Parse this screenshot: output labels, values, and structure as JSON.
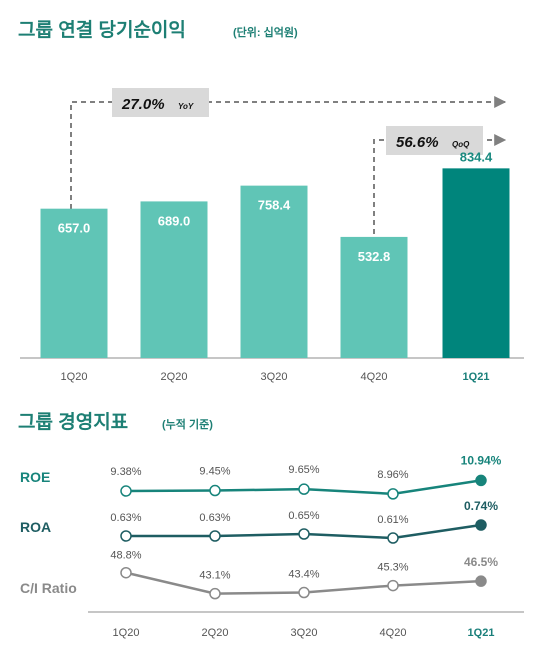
{
  "titles": {
    "net_income_main": "그룹 연결 당기순이익",
    "net_income_unit": "(단위: 십억원)",
    "indicators_main": "그룹 경영지표",
    "indicators_unit": "(누적 기준)"
  },
  "growth": {
    "yoy_value": "27.0%",
    "yoy_suffix": "YoY",
    "qoq_value": "56.6%",
    "qoq_suffix": "QoQ"
  },
  "colors": {
    "bar": "#60c5b6",
    "bar_highlight": "#00857c",
    "title": "#1d7f74",
    "roe": "#17847b",
    "roa": "#1e5d62",
    "ci": "#8a8a8a"
  },
  "chart_data": [
    {
      "type": "bar",
      "title": "그룹 연결 당기순이익",
      "unit": "(단위: 십억원)",
      "categories": [
        "1Q20",
        "2Q20",
        "3Q20",
        "4Q20",
        "1Q21"
      ],
      "values": [
        657.0,
        689.0,
        758.4,
        532.8,
        834.4
      ],
      "value_labels": [
        "657.0",
        "689.0",
        "758.4",
        "532.8",
        "834.4"
      ],
      "highlight_index": 4,
      "ylim": [
        0,
        880
      ],
      "annotations": [
        "27.0% YoY",
        "56.6% QoQ"
      ]
    },
    {
      "type": "line",
      "title": "그룹 경영지표",
      "unit": "(누적 기준)",
      "categories": [
        "1Q20",
        "2Q20",
        "3Q20",
        "4Q20",
        "1Q21"
      ],
      "series": [
        {
          "name": "ROE",
          "values": [
            9.38,
            9.45,
            9.65,
            8.96,
            10.94
          ],
          "labels": [
            "9.38%",
            "9.45%",
            "9.65%",
            "8.96%",
            "10.94%"
          ]
        },
        {
          "name": "ROA",
          "values": [
            0.63,
            0.63,
            0.65,
            0.61,
            0.74
          ],
          "labels": [
            "0.63%",
            "0.63%",
            "0.65%",
            "0.61%",
            "0.74%"
          ]
        },
        {
          "name": "C/I Ratio",
          "values": [
            48.8,
            43.1,
            43.4,
            45.3,
            46.5
          ],
          "labels": [
            "48.8%",
            "43.1%",
            "43.4%",
            "45.3%",
            "46.5%"
          ]
        }
      ]
    }
  ]
}
